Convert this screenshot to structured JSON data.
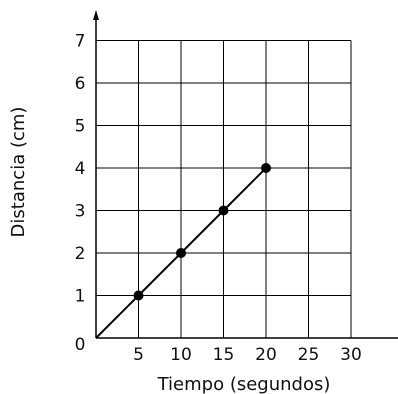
{
  "chart_data": {
    "type": "line",
    "xlabel": "Tiempo (segundos)",
    "ylabel": "Distancia (cm)",
    "xlim": [
      0,
      30
    ],
    "ylim": [
      0,
      7
    ],
    "x_ticks": [
      "5",
      "10",
      "15",
      "20",
      "25",
      "30"
    ],
    "y_ticks": [
      "1",
      "2",
      "3",
      "4",
      "5",
      "6",
      "7"
    ],
    "origin_label": "0",
    "grid": true,
    "series": [
      {
        "x": [
          0,
          5,
          10,
          15,
          20
        ],
        "y": [
          0,
          1,
          2,
          3,
          4
        ],
        "markers": [
          false,
          true,
          true,
          true,
          true
        ]
      }
    ]
  }
}
